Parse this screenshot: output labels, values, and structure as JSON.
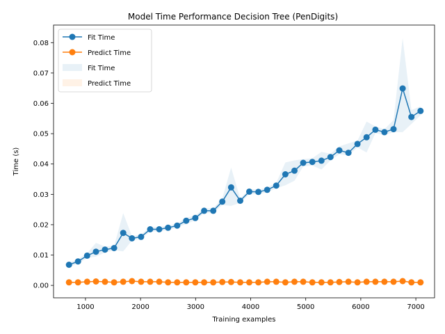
{
  "chart_data": {
    "type": "line",
    "title": "Model Time Performance Decision Tree (PenDigits)",
    "xlabel": "Training examples",
    "ylabel": "Time (s)",
    "xlim": [
      420,
      7340
    ],
    "ylim": [
      -0.0041,
      0.0858
    ],
    "xticks": [
      1000,
      2000,
      3000,
      4000,
      5000,
      6000,
      7000
    ],
    "yticks": [
      0.0,
      0.01,
      0.02,
      0.03,
      0.04,
      0.05,
      0.06,
      0.07,
      0.08
    ],
    "ytick_labels": [
      "0.00",
      "0.01",
      "0.02",
      "0.03",
      "0.04",
      "0.05",
      "0.06",
      "0.07",
      "0.08"
    ],
    "legend_position": "top-left",
    "grid": false,
    "x": [
      700,
      865,
      1030,
      1190,
      1355,
      1520,
      1685,
      1845,
      2010,
      2175,
      2340,
      2500,
      2665,
      2830,
      2995,
      3155,
      3320,
      3485,
      3645,
      3810,
      3975,
      4140,
      4300,
      4465,
      4630,
      4795,
      4955,
      5120,
      5285,
      5450,
      5610,
      5775,
      5940,
      6105,
      6265,
      6430,
      6595,
      6760,
      6920,
      7085
    ],
    "series": [
      {
        "name": "Fit Time",
        "color": "#1f77b4",
        "values": [
          0.0068,
          0.0079,
          0.0098,
          0.0111,
          0.0118,
          0.0123,
          0.0173,
          0.0155,
          0.016,
          0.0185,
          0.0185,
          0.019,
          0.0197,
          0.0213,
          0.0222,
          0.0246,
          0.0246,
          0.0276,
          0.0323,
          0.0279,
          0.0309,
          0.0308,
          0.0315,
          0.0329,
          0.0366,
          0.0378,
          0.0404,
          0.0407,
          0.0411,
          0.0423,
          0.0445,
          0.0437,
          0.0466,
          0.0488,
          0.0513,
          0.0505,
          0.0515,
          0.0649,
          0.0555,
          0.0575
        ],
        "band_lower": [
          0.0061,
          0.0072,
          0.009,
          0.0095,
          0.0108,
          0.0116,
          0.0112,
          0.0148,
          0.0152,
          0.0178,
          0.0178,
          0.0183,
          0.019,
          0.0203,
          0.0214,
          0.0238,
          0.0238,
          0.0265,
          0.0262,
          0.0272,
          0.03,
          0.0301,
          0.0307,
          0.032,
          0.033,
          0.0345,
          0.0392,
          0.0395,
          0.0382,
          0.0412,
          0.0432,
          0.0428,
          0.0455,
          0.0438,
          0.0502,
          0.0495,
          0.0505,
          0.0505,
          0.0532,
          0.056
        ],
        "band_upper": [
          0.0075,
          0.0086,
          0.0106,
          0.014,
          0.0128,
          0.013,
          0.0238,
          0.0162,
          0.0168,
          0.0192,
          0.0192,
          0.0197,
          0.0204,
          0.0223,
          0.023,
          0.0254,
          0.0254,
          0.0287,
          0.0388,
          0.0286,
          0.0318,
          0.0315,
          0.0323,
          0.0338,
          0.0405,
          0.0412,
          0.0416,
          0.0419,
          0.044,
          0.0434,
          0.0458,
          0.0468,
          0.0477,
          0.054,
          0.0524,
          0.0515,
          0.0545,
          0.0815,
          0.0578,
          0.059
        ]
      },
      {
        "name": "Predict Time",
        "color": "#ff7f0e",
        "values": [
          0.001,
          0.001,
          0.0012,
          0.0013,
          0.0012,
          0.001,
          0.0012,
          0.0014,
          0.0012,
          0.0012,
          0.0012,
          0.001,
          0.001,
          0.001,
          0.001,
          0.001,
          0.001,
          0.0011,
          0.0011,
          0.001,
          0.001,
          0.001,
          0.0012,
          0.0012,
          0.001,
          0.0012,
          0.0012,
          0.001,
          0.001,
          0.001,
          0.0011,
          0.0012,
          0.001,
          0.0012,
          0.0012,
          0.0012,
          0.0012,
          0.0014,
          0.001,
          0.001
        ],
        "band_lower": [
          0.0008,
          0.0008,
          0.001,
          0.0011,
          0.001,
          0.0008,
          0.001,
          0.0012,
          0.001,
          0.001,
          0.001,
          0.0008,
          0.0008,
          0.0008,
          0.0008,
          0.0008,
          0.0008,
          0.0009,
          0.0009,
          0.0008,
          0.0008,
          0.0008,
          0.001,
          0.001,
          0.0008,
          0.001,
          0.001,
          0.0008,
          0.0008,
          0.0008,
          0.0009,
          0.001,
          0.0008,
          0.001,
          0.001,
          0.001,
          0.001,
          0.0011,
          0.0008,
          0.0008
        ],
        "band_upper": [
          0.0012,
          0.0012,
          0.0014,
          0.0015,
          0.0014,
          0.0012,
          0.0014,
          0.0016,
          0.0014,
          0.0014,
          0.0014,
          0.0012,
          0.0012,
          0.0012,
          0.0012,
          0.0012,
          0.0012,
          0.0013,
          0.0013,
          0.0012,
          0.0012,
          0.0012,
          0.0014,
          0.0014,
          0.0012,
          0.0014,
          0.0014,
          0.0012,
          0.0012,
          0.0012,
          0.0013,
          0.0014,
          0.0012,
          0.0014,
          0.0014,
          0.0014,
          0.0014,
          0.0017,
          0.0012,
          0.0012
        ]
      }
    ],
    "legend": [
      {
        "label": "Fit Time",
        "kind": "line",
        "color": "#1f77b4"
      },
      {
        "label": "Predict Time",
        "kind": "line",
        "color": "#ff7f0e"
      },
      {
        "label": "Fit Time",
        "kind": "band",
        "color": "#1f77b4"
      },
      {
        "label": "Predict Time",
        "kind": "band",
        "color": "#ff7f0e"
      }
    ]
  }
}
